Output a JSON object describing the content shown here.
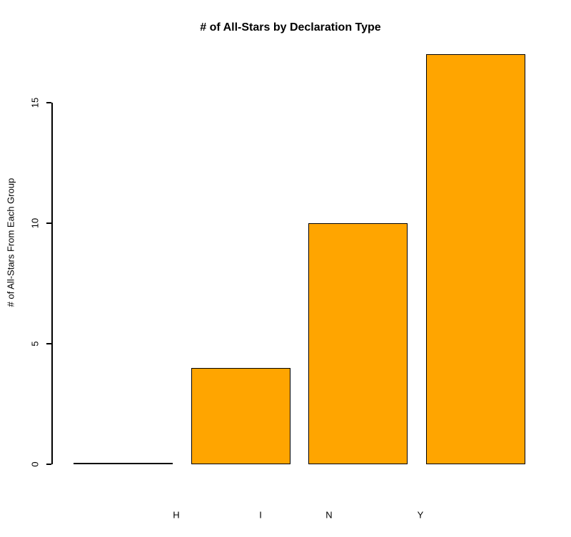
{
  "chart_data": {
    "type": "bar",
    "title": "# of All-Stars by Declaration Type",
    "xlabel": "",
    "ylabel": "# of All-Stars From Each Group",
    "categories": [
      "H",
      "I",
      "N",
      "Y"
    ],
    "values": [
      0,
      4,
      10,
      17
    ],
    "yticks": [
      0,
      5,
      10,
      15
    ],
    "ylim": [
      0,
      17.2
    ],
    "grid": false,
    "legend": false,
    "bar_color": "#FFA500",
    "bar_border_color": "#000000",
    "axis_color": "#000000",
    "background_color": "#FFFFFF"
  }
}
